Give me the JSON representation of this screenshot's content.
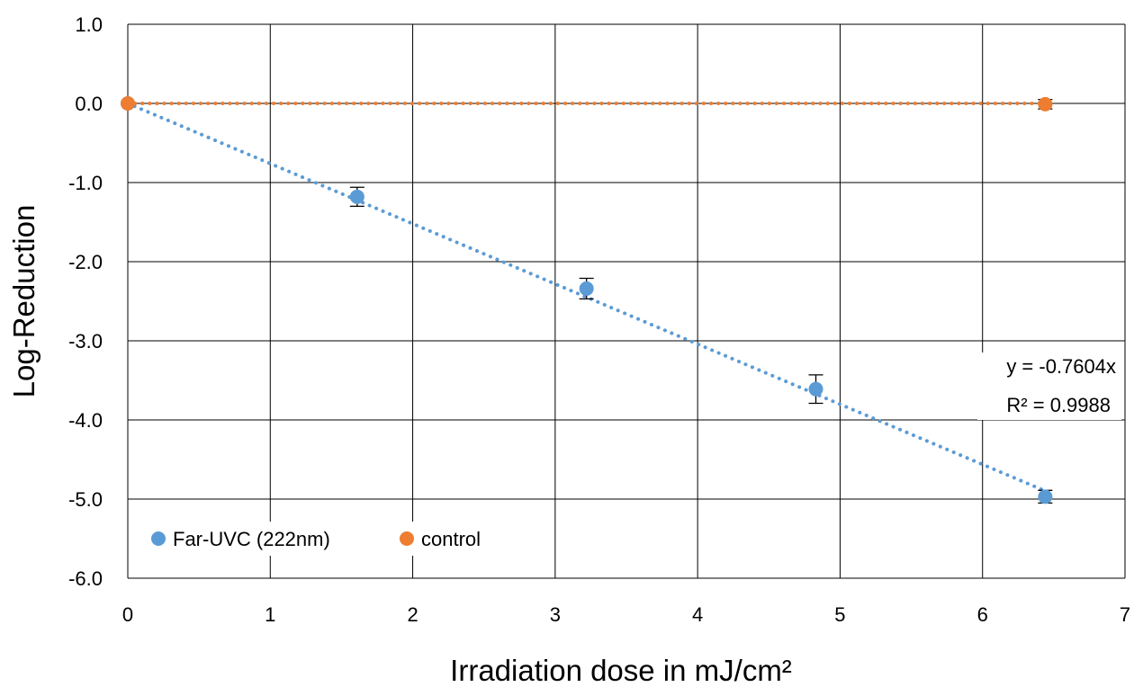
{
  "chart_data": {
    "type": "scatter",
    "title": "",
    "xlabel": "Irradiation dose in mJ/cm²",
    "ylabel": "Log-Reduction",
    "xlim": [
      0,
      7
    ],
    "ylim": [
      -6.0,
      1.0
    ],
    "x_ticks": [
      "0",
      "1",
      "2",
      "3",
      "4",
      "5",
      "6",
      "7"
    ],
    "y_ticks": [
      "1.0",
      "0.0",
      "-1.0",
      "-2.0",
      "-3.0",
      "-4.0",
      "-5.0",
      "-6.0"
    ],
    "x_tick_values": [
      0,
      1,
      2,
      3,
      4,
      5,
      6,
      7
    ],
    "y_tick_values": [
      1,
      0,
      -1,
      -2,
      -3,
      -4,
      -5,
      -6
    ],
    "grid": true,
    "legend_position": "bottom-left",
    "series": [
      {
        "name": "Far-UVC (222nm)",
        "color": "#5b9bd5",
        "points": [
          {
            "x": 0,
            "y": 0.0,
            "err": 0.0
          },
          {
            "x": 1.61,
            "y": -1.18,
            "err": 0.12
          },
          {
            "x": 3.22,
            "y": -2.34,
            "err": 0.13
          },
          {
            "x": 4.83,
            "y": -3.61,
            "err": 0.18
          },
          {
            "x": 6.44,
            "y": -4.97,
            "err": 0.08
          }
        ],
        "trendline": {
          "slope": -0.7604,
          "intercept": 0,
          "x_range": [
            0,
            6.44
          ]
        }
      },
      {
        "name": "control",
        "color": "#ed7d31",
        "points": [
          {
            "x": 0,
            "y": 0.0,
            "err": 0.0
          },
          {
            "x": 6.44,
            "y": -0.01,
            "err": 0.06
          }
        ],
        "trendline": {
          "slope": 0,
          "intercept": 0,
          "x_range": [
            0,
            6.44
          ]
        }
      }
    ],
    "annotations": {
      "equation": "y = -0.7604x",
      "r_squared": "R² = 0.9988"
    }
  }
}
